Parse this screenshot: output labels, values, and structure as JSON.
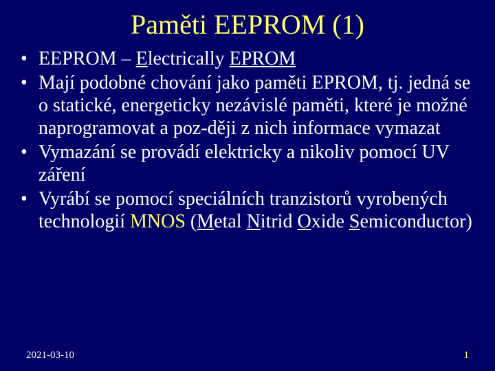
{
  "slide": {
    "title": "Paměti EEPROM (1)",
    "background_color": "#000066",
    "title_color": "#ffff66",
    "body_color": "#ffffff",
    "accent_color": "#ffff66",
    "title_fontsize": 40,
    "body_fontsize": 28,
    "footer_fontsize": 15,
    "bullets": [
      {
        "prefix": "EEPROM – ",
        "u1": "E",
        "mid1": "lectrically ",
        "u2": "EPROM",
        "rest": ""
      },
      {
        "text": "Mají podobné chování jako paměti EPROM, tj. jedná se o statické, energeticky nezávislé paměti, které je možné naprogramovat a poz-ději z nich informace vymazat"
      },
      {
        "text": "Vymazání se provádí elektricky a nikoliv pomocí UV záření"
      },
      {
        "prefix": "Vyrábí se pomocí speciálních tranzistorů vyrobených technologií ",
        "mnos": "MNOS",
        "open": " (",
        "m_u": "M",
        "m_rest": "etal ",
        "n_u": "N",
        "n_rest": "itrid ",
        "o_u": "O",
        "o_rest": "xide ",
        "s_u": "S",
        "s_rest": "emiconductor)",
        "close": ""
      }
    ],
    "footer": {
      "date": "2021-03-10",
      "page": "1"
    }
  }
}
